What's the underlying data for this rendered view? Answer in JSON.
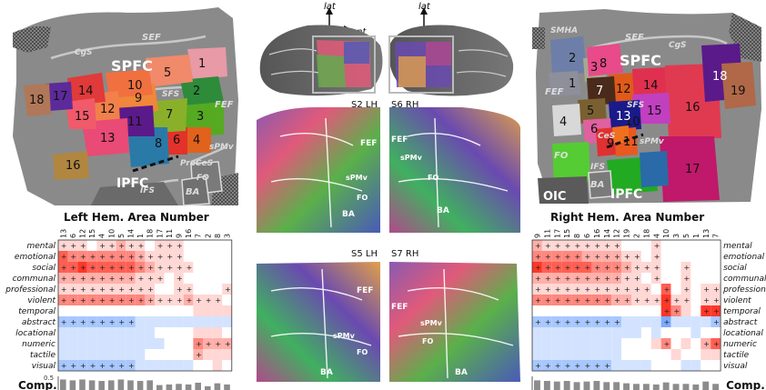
{
  "left_map": {
    "region_labels": {
      "spfc": "SPFC",
      "ipfc": "IPFC",
      "sef": "SEF",
      "fef": "FEF",
      "cgs": "CgS",
      "sfs": "SFS",
      "ifs": "IFS",
      "precs": "PreCeS",
      "spmv": "sPMv",
      "fo": "FO",
      "ba": "BA"
    },
    "areas": [
      {
        "n": "1",
        "color": "#e89aa6"
      },
      {
        "n": "2",
        "color": "#2e8b3a"
      },
      {
        "n": "3",
        "color": "#55aa22"
      },
      {
        "n": "4",
        "color": "#e0621c"
      },
      {
        "n": "5",
        "color": "#f08a6a"
      },
      {
        "n": "6",
        "color": "#e2322a"
      },
      {
        "n": "7",
        "color": "#8ab02a"
      },
      {
        "n": "8",
        "color": "#2a7aa8"
      },
      {
        "n": "9",
        "color": "#f0873a"
      },
      {
        "n": "10",
        "color": "#f07040"
      },
      {
        "n": "11",
        "color": "#5b1a8a"
      },
      {
        "n": "12",
        "color": "#f2804a"
      },
      {
        "n": "13",
        "color": "#e94a76"
      },
      {
        "n": "14",
        "color": "#e03a3a"
      },
      {
        "n": "15",
        "color": "#f05a6a"
      },
      {
        "n": "16",
        "color": "#b08640"
      },
      {
        "n": "17",
        "color": "#5c2a9a"
      },
      {
        "n": "18",
        "color": "#b07858"
      }
    ]
  },
  "right_map": {
    "region_labels": {
      "spfc": "SPFC",
      "ipfc": "IPFC",
      "smha": "SMHA",
      "sef": "SEF",
      "fef": "FEF",
      "cgs": "CgS",
      "sfs": "SFS",
      "ifs": "IFS",
      "ces": "CeS",
      "spmv": "sPMv",
      "fo": "FO",
      "oic": "OIC",
      "ba": "BA"
    },
    "areas": [
      {
        "n": "1",
        "color": "#8d8f9a"
      },
      {
        "n": "2",
        "color": "#6d7fa8"
      },
      {
        "n": "3",
        "color": "#a8a890"
      },
      {
        "n": "4",
        "color": "#d8d8d8"
      },
      {
        "n": "5",
        "color": "#7a6030"
      },
      {
        "n": "6",
        "color": "#e060a0"
      },
      {
        "n": "7",
        "color": "#4a2a1a"
      },
      {
        "n": "8",
        "color": "#e84a8a"
      },
      {
        "n": "9",
        "color": "#e03030"
      },
      {
        "n": "10",
        "color": "#f07020"
      },
      {
        "n": "11",
        "color": "#e85a20"
      },
      {
        "n": "12",
        "color": "#e05a1a"
      },
      {
        "n": "13",
        "color": "#1a1a8a"
      },
      {
        "n": "14",
        "color": "#e03050"
      },
      {
        "n": "15",
        "color": "#c040c0"
      },
      {
        "n": "16",
        "color": "#e03a50"
      },
      {
        "n": "17",
        "color": "#c0186a"
      },
      {
        "n": "18",
        "color": "#5a1a8a"
      },
      {
        "n": "19",
        "color": "#b06848"
      }
    ]
  },
  "center": {
    "axis_lat": "lat",
    "axis_ant": "ant",
    "panels": [
      {
        "id": "S2 LH"
      },
      {
        "id": "S6 RH"
      },
      {
        "id": "S5 LH"
      },
      {
        "id": "S7 RH"
      }
    ],
    "flatmap_labels": {
      "fef": "FEF",
      "spmv": "sPMv",
      "fo": "FO",
      "ba": "BA"
    }
  },
  "left_matrix": {
    "title": "Left Hem. Area Number",
    "columns": [
      "13",
      "6",
      "12",
      "15",
      "4",
      "10",
      "5",
      "14",
      "1",
      "18",
      "17",
      "11",
      "9",
      "16",
      "7",
      "2",
      "8",
      "3"
    ],
    "rows": [
      "mental",
      "emotional",
      "social",
      "communal",
      "professional",
      "violent",
      "temporal",
      "abstract",
      "locational",
      "numeric",
      "tactile",
      "visual"
    ],
    "values": [
      [
        1,
        1,
        1,
        0,
        1,
        1,
        2,
        1,
        1,
        0,
        1,
        1,
        1,
        0,
        0,
        0,
        0,
        0
      ],
      [
        4,
        3,
        3,
        3,
        3,
        3,
        3,
        3,
        2,
        1,
        1,
        1,
        1,
        0,
        0,
        0,
        0,
        0
      ],
      [
        4,
        4,
        5,
        4,
        4,
        4,
        4,
        4,
        3,
        2,
        1,
        1,
        1,
        1,
        0,
        0,
        0,
        0
      ],
      [
        2,
        2,
        2,
        2,
        2,
        2,
        2,
        2,
        1,
        1,
        1,
        0,
        1,
        0,
        0,
        0,
        0,
        0
      ],
      [
        1,
        1,
        1,
        1,
        1,
        1,
        1,
        1,
        1,
        1,
        0,
        0,
        1,
        1,
        0,
        0,
        0,
        1
      ],
      [
        3,
        3,
        3,
        3,
        3,
        3,
        3,
        3,
        3,
        2,
        1,
        1,
        1,
        2,
        1,
        1,
        1,
        0
      ],
      [
        0,
        0,
        0,
        0,
        0,
        0,
        0,
        0,
        0,
        0,
        0,
        0,
        0,
        0,
        1,
        1,
        1,
        1
      ],
      [
        -2,
        -2,
        -2,
        -2,
        -2,
        -2,
        -2,
        -2,
        -1,
        -1,
        -1,
        -1,
        -1,
        -1,
        -1,
        -1,
        -1,
        -1
      ],
      [
        -1,
        -1,
        -1,
        -1,
        -1,
        -1,
        -1,
        -1,
        -1,
        -1,
        0,
        0,
        0,
        0,
        1,
        1,
        1,
        0
      ],
      [
        -1,
        -1,
        -1,
        -1,
        -1,
        -1,
        -1,
        -1,
        -1,
        -1,
        -1,
        0,
        0,
        0,
        3,
        2,
        2,
        2
      ],
      [
        -1,
        -1,
        -1,
        -1,
        -1,
        -1,
        -1,
        -1,
        -1,
        0,
        0,
        0,
        0,
        0,
        2,
        1,
        1,
        1
      ],
      [
        -2,
        -2,
        -2,
        -2,
        -2,
        -2,
        -2,
        -2,
        -1,
        -1,
        -1,
        -1,
        -1,
        -1,
        0,
        0,
        1,
        0
      ]
    ],
    "comp_axis_label": "0.5",
    "comp_label": "Comp.",
    "comp_values": [
      0.45,
      0.42,
      0.45,
      0.42,
      0.4,
      0.42,
      0.45,
      0.42,
      0.4,
      0.42,
      0.26,
      0.28,
      0.3,
      0.28,
      0.34,
      0.22,
      0.32,
      0.28
    ]
  },
  "right_matrix": {
    "title": "Right Hem. Area Number",
    "columns": [
      "9",
      "11",
      "17",
      "15",
      "8",
      "6",
      "16",
      "14",
      "12",
      "19",
      "2",
      "18",
      "4",
      "10",
      "3",
      "5",
      "1",
      "13",
      "7"
    ],
    "rows": [
      "mental",
      "emotional",
      "social",
      "communal",
      "professiona",
      "violent",
      "temporal",
      "abstract",
      "locational",
      "numeric",
      "tactile",
      "visual"
    ],
    "values": [
      [
        2,
        1,
        1,
        1,
        1,
        1,
        1,
        1,
        1,
        0,
        0,
        0,
        1,
        0,
        0,
        0,
        0,
        0,
        0
      ],
      [
        3,
        3,
        3,
        3,
        3,
        2,
        2,
        2,
        2,
        1,
        1,
        0,
        1,
        0,
        0,
        0,
        0,
        0,
        0
      ],
      [
        5,
        4,
        4,
        4,
        4,
        4,
        3,
        3,
        3,
        2,
        1,
        1,
        1,
        0,
        0,
        1,
        0,
        0,
        0
      ],
      [
        2,
        2,
        2,
        2,
        2,
        2,
        2,
        2,
        2,
        1,
        1,
        0,
        1,
        0,
        0,
        1,
        0,
        0,
        0
      ],
      [
        1,
        1,
        1,
        1,
        1,
        1,
        1,
        1,
        1,
        1,
        1,
        1,
        0,
        4,
        0,
        1,
        0,
        1,
        1
      ],
      [
        3,
        3,
        3,
        3,
        3,
        3,
        3,
        3,
        2,
        2,
        1,
        1,
        1,
        5,
        1,
        1,
        0,
        1,
        1
      ],
      [
        0,
        0,
        0,
        0,
        0,
        0,
        0,
        0,
        0,
        0,
        0,
        0,
        0,
        5,
        3,
        1,
        0,
        5,
        5
      ],
      [
        -2,
        -2,
        -2,
        -2,
        -2,
        -2,
        -2,
        -2,
        -2,
        -1,
        -1,
        -1,
        -1,
        -3,
        -1,
        -1,
        -1,
        -1,
        -2
      ],
      [
        -1,
        -1,
        -1,
        -1,
        -1,
        -1,
        -1,
        -1,
        -1,
        -1,
        -1,
        0,
        -1,
        0,
        0,
        0,
        -1,
        0,
        0
      ],
      [
        -1,
        -1,
        -1,
        -1,
        -1,
        -1,
        -1,
        -1,
        -1,
        0,
        0,
        0,
        1,
        3,
        0,
        1,
        0,
        2,
        4
      ],
      [
        -1,
        -1,
        -1,
        -1,
        -1,
        -1,
        -1,
        -1,
        -1,
        0,
        0,
        0,
        0,
        0,
        1,
        0,
        0,
        1,
        1
      ],
      [
        -2,
        -2,
        -2,
        -2,
        -2,
        -2,
        -2,
        -2,
        -1,
        -1,
        -1,
        -1,
        0,
        0,
        0,
        -1,
        -1,
        0,
        0
      ]
    ],
    "comp_label": "Comp.",
    "comp_values": [
      0.42,
      0.4,
      0.38,
      0.4,
      0.36,
      0.38,
      0.4,
      0.36,
      0.36,
      0.32,
      0.3,
      0.3,
      0.28,
      0.35,
      0.3,
      0.3,
      0.28,
      0.38,
      0.3
    ]
  },
  "colors": {
    "positive": "#b2182b",
    "negative": "#2166ac",
    "cortex": "#8a8a8a",
    "sulcus": "#bdbdbd"
  }
}
